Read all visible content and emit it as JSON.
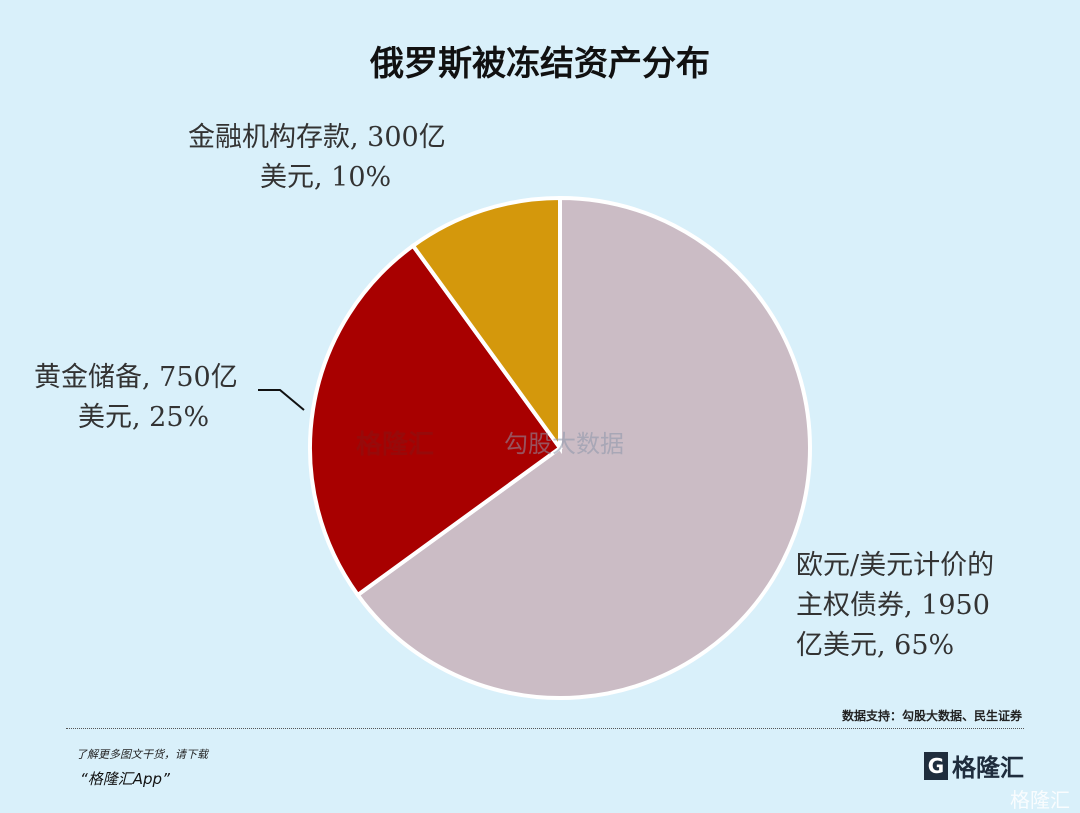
{
  "chart_data": {
    "type": "pie",
    "title": "俄罗斯被冻结资产分布",
    "start": "12 o'clock, clockwise",
    "slices": [
      {
        "label_lines": [
          "欧元/美元计价的",
          "主权债券, 1950",
          "亿美元, 65%"
        ],
        "value": 1950,
        "percent": 65,
        "color": "#cbbcc5"
      },
      {
        "label_lines": [
          "黄金储备, 750亿",
          "美元, 25%"
        ],
        "value": 750,
        "percent": 25,
        "color": "#a80000"
      },
      {
        "label_lines": [
          "金融机构存款, 300亿",
          "美元, 10%"
        ],
        "value": 300,
        "percent": 10,
        "color": "#d4980c"
      }
    ],
    "unit": "亿美元"
  },
  "footer": {
    "source": "数据支持：勾股大数据、民生证券",
    "promo_line1": "了解更多图文干货，请下载",
    "promo_line2": "“格隆汇App”",
    "logo_text": "格隆汇",
    "watermark": "格隆汇",
    "center_watermark_1": "格隆汇",
    "center_watermark_2": "勾股大数据"
  }
}
